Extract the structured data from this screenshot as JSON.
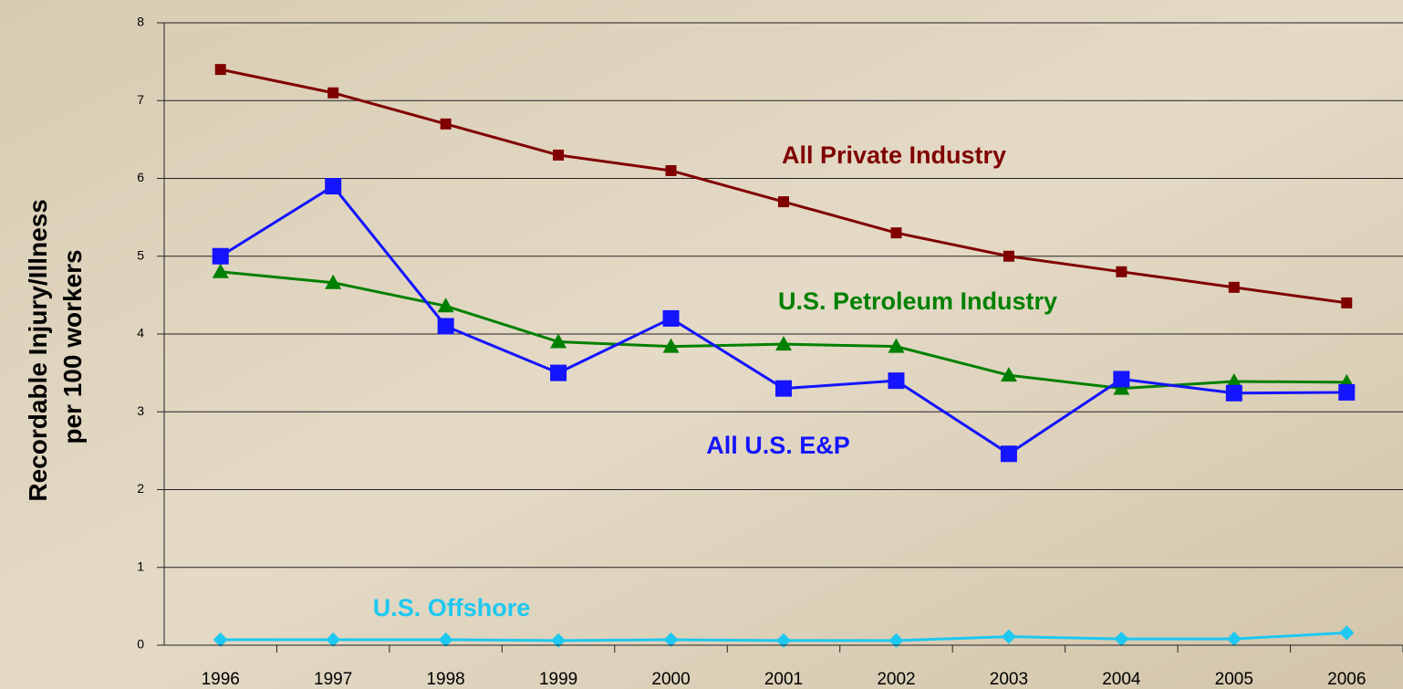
{
  "chart_data": {
    "type": "line",
    "y_label": [
      "Recordable Injury/Illness",
      "per 100 workers"
    ],
    "categories": [
      "1996",
      "1997",
      "1998",
      "1999",
      "2000",
      "2001",
      "2002",
      "2003",
      "2004",
      "2005",
      "2006"
    ],
    "series": [
      {
        "name": "All Private Industry",
        "color": "#800000",
        "marker": "square-small",
        "values": [
          7.4,
          7.1,
          6.7,
          6.3,
          6.1,
          5.7,
          5.3,
          5.0,
          4.8,
          4.6,
          4.4
        ]
      },
      {
        "name": "U.S. Petroleum Industry",
        "color": "#008000",
        "marker": "triangle",
        "values": [
          4.8,
          4.66,
          4.36,
          3.9,
          3.84,
          3.87,
          3.84,
          3.47,
          3.3,
          3.39,
          3.38
        ]
      },
      {
        "name": "All U.S. E&P",
        "color": "#1414ff",
        "marker": "square",
        "values": [
          5.0,
          5.9,
          4.1,
          3.5,
          4.2,
          3.3,
          3.4,
          2.46,
          3.42,
          3.24,
          3.25
        ]
      },
      {
        "name": "U.S. Offshore",
        "color": "#1ec8f0",
        "marker": "diamond",
        "values": [
          0.07,
          0.07,
          0.07,
          0.06,
          0.07,
          0.06,
          0.06,
          0.11,
          0.08,
          0.08,
          0.16
        ]
      }
    ],
    "ylim": [
      0,
      8
    ],
    "yticks": [
      0,
      1,
      2,
      3,
      4,
      5,
      6,
      7,
      8
    ],
    "grid": true
  }
}
